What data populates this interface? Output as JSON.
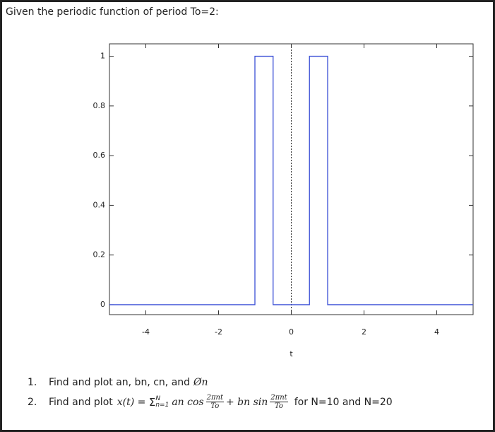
{
  "header": {
    "title": "Given the periodic function of period To=2:"
  },
  "chart_data": {
    "type": "line",
    "x": [
      -5,
      -1,
      -1,
      -0.5,
      -0.5,
      0.5,
      0.5,
      1,
      1,
      5
    ],
    "series": [
      {
        "color": "#3a4fd6",
        "values": [
          0,
          0,
          1,
          1,
          0,
          0,
          1,
          1,
          0,
          0
        ]
      }
    ],
    "xlim": [
      -5,
      5
    ],
    "xticks": [
      -4,
      -2,
      0,
      2,
      4
    ],
    "ylim": [
      -0.04,
      1.05
    ],
    "yticks": [
      0,
      0.2,
      0.4,
      0.6,
      0.8,
      1
    ],
    "xlabel": "t"
  },
  "questions": [
    {
      "number": "1.",
      "text": "Find and plot an, bn, cn, and",
      "math": "Øn"
    },
    {
      "number": "2.",
      "text": "Find and plot",
      "lhs": "x(t) = ",
      "sum": "Σ",
      "sup": "N",
      "sub": "n=1",
      "term1": "an cos",
      "num1": "2πnt",
      "den1": "To",
      "term2": "+ bn sin",
      "num2": "2πnt",
      "den2": "To",
      "suffix": "for N=10 and N=20"
    }
  ]
}
